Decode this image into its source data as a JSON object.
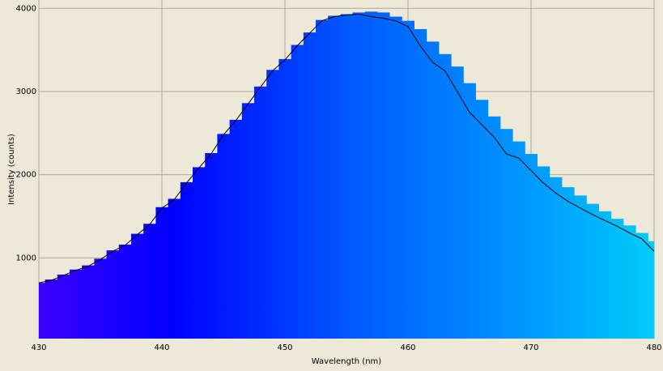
{
  "chart_data": {
    "type": "combo",
    "x_label": "Wavelength (nm)",
    "y_label": "Intensity (counts)",
    "x": [
      430,
      431,
      432,
      433,
      434,
      435,
      436,
      437,
      438,
      439,
      440,
      441,
      442,
      443,
      444,
      445,
      446,
      447,
      448,
      449,
      450,
      451,
      452,
      453,
      454,
      455,
      456,
      457,
      458,
      459,
      460,
      461,
      462,
      463,
      464,
      465,
      466,
      467,
      468,
      469,
      470,
      471,
      472,
      473,
      474,
      475,
      476,
      477,
      478,
      479,
      480
    ],
    "series": [
      {
        "type": "bar",
        "values": [
          700,
          740,
          800,
          860,
          910,
          990,
          1090,
          1160,
          1290,
          1410,
          1610,
          1710,
          1910,
          2090,
          2260,
          2490,
          2660,
          2860,
          3060,
          3260,
          3390,
          3560,
          3710,
          3860,
          3910,
          3930,
          3950,
          3960,
          3950,
          3900,
          3850,
          3750,
          3600,
          3450,
          3300,
          3100,
          2900,
          2700,
          2550,
          2400,
          2250,
          2100,
          1970,
          1850,
          1750,
          1650,
          1560,
          1470,
          1390,
          1300,
          1200
        ],
        "color_stops": [
          {
            "x": 430,
            "color": "#3a00ff"
          },
          {
            "x": 441,
            "color": "#0000ff"
          },
          {
            "x": 455,
            "color": "#0058ff"
          },
          {
            "x": 470,
            "color": "#0099ff"
          },
          {
            "x": 480,
            "color": "#00ccf8"
          }
        ]
      },
      {
        "type": "line",
        "color": "#000000",
        "values": [
          700,
          730,
          790,
          850,
          900,
          980,
          1080,
          1150,
          1280,
          1400,
          1600,
          1700,
          1900,
          2080,
          2250,
          2480,
          2650,
          2850,
          3050,
          3250,
          3380,
          3550,
          3700,
          3850,
          3900,
          3920,
          3930,
          3900,
          3880,
          3850,
          3780,
          3550,
          3350,
          3250,
          3000,
          2750,
          2600,
          2450,
          2250,
          2200,
          2050,
          1900,
          1780,
          1680,
          1600,
          1520,
          1450,
          1380,
          1300,
          1230,
          1080
        ]
      }
    ],
    "xlim": [
      430,
      480
    ],
    "ylim": [
      30,
      4100
    ],
    "xticks": [
      430,
      440,
      450,
      460,
      470,
      480
    ],
    "yticks": [
      1000,
      2000,
      3000,
      4000
    ],
    "grid": true
  }
}
